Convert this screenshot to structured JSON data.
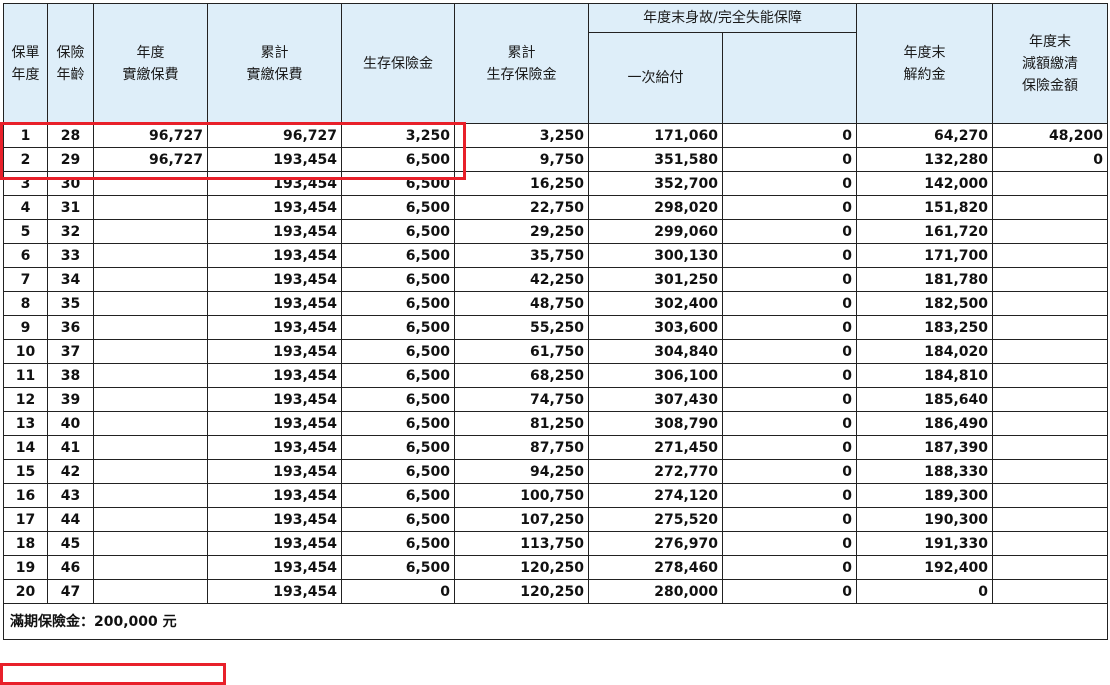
{
  "headers": {
    "policy_year": [
      "保單",
      "年度"
    ],
    "insured_age": [
      "保險",
      "年齡"
    ],
    "annual_premium": [
      "年度",
      "實繳保費"
    ],
    "cumulative_premium": [
      "累計",
      "實繳保費"
    ],
    "survival_benefit": "生存保險金",
    "cumulative_survival_benefit": [
      "累計",
      "生存保險金"
    ],
    "death_group": "年度末身故/完全失能保障",
    "lump_sum": "一次給付",
    "blank_col": "",
    "surrender_value": [
      "年度末",
      "解約金"
    ],
    "reduced_paid_up": [
      "年度末",
      "減額繳清",
      "保險金額"
    ]
  },
  "rows": [
    [
      "1",
      "28",
      "96,727",
      "96,727",
      "3,250",
      "3,250",
      "171,060",
      "0",
      "64,270",
      "48,200"
    ],
    [
      "2",
      "29",
      "96,727",
      "193,454",
      "6,500",
      "9,750",
      "351,580",
      "0",
      "132,280",
      "0"
    ],
    [
      "3",
      "30",
      "",
      "193,454",
      "6,500",
      "16,250",
      "352,700",
      "0",
      "142,000",
      ""
    ],
    [
      "4",
      "31",
      "",
      "193,454",
      "6,500",
      "22,750",
      "298,020",
      "0",
      "151,820",
      ""
    ],
    [
      "5",
      "32",
      "",
      "193,454",
      "6,500",
      "29,250",
      "299,060",
      "0",
      "161,720",
      ""
    ],
    [
      "6",
      "33",
      "",
      "193,454",
      "6,500",
      "35,750",
      "300,130",
      "0",
      "171,700",
      ""
    ],
    [
      "7",
      "34",
      "",
      "193,454",
      "6,500",
      "42,250",
      "301,250",
      "0",
      "181,780",
      ""
    ],
    [
      "8",
      "35",
      "",
      "193,454",
      "6,500",
      "48,750",
      "302,400",
      "0",
      "182,500",
      ""
    ],
    [
      "9",
      "36",
      "",
      "193,454",
      "6,500",
      "55,250",
      "303,600",
      "0",
      "183,250",
      ""
    ],
    [
      "10",
      "37",
      "",
      "193,454",
      "6,500",
      "61,750",
      "304,840",
      "0",
      "184,020",
      ""
    ],
    [
      "11",
      "38",
      "",
      "193,454",
      "6,500",
      "68,250",
      "306,100",
      "0",
      "184,810",
      ""
    ],
    [
      "12",
      "39",
      "",
      "193,454",
      "6,500",
      "74,750",
      "307,430",
      "0",
      "185,640",
      ""
    ],
    [
      "13",
      "40",
      "",
      "193,454",
      "6,500",
      "81,250",
      "308,790",
      "0",
      "186,490",
      ""
    ],
    [
      "14",
      "41",
      "",
      "193,454",
      "6,500",
      "87,750",
      "271,450",
      "0",
      "187,390",
      ""
    ],
    [
      "15",
      "42",
      "",
      "193,454",
      "6,500",
      "94,250",
      "272,770",
      "0",
      "188,330",
      ""
    ],
    [
      "16",
      "43",
      "",
      "193,454",
      "6,500",
      "100,750",
      "274,120",
      "0",
      "189,300",
      ""
    ],
    [
      "17",
      "44",
      "",
      "193,454",
      "6,500",
      "107,250",
      "275,520",
      "0",
      "190,300",
      ""
    ],
    [
      "18",
      "45",
      "",
      "193,454",
      "6,500",
      "113,750",
      "276,970",
      "0",
      "191,330",
      ""
    ],
    [
      "19",
      "46",
      "",
      "193,454",
      "6,500",
      "120,250",
      "278,460",
      "0",
      "192,400",
      ""
    ],
    [
      "20",
      "47",
      "",
      "193,454",
      "0",
      "120,250",
      "280,000",
      "0",
      "0",
      ""
    ]
  ],
  "footer": {
    "maturity_benefit": "滿期保險金：200,000 元"
  },
  "colors": {
    "header_bg": "#deeef9",
    "highlight": "#e8202a",
    "border": "#222222"
  }
}
